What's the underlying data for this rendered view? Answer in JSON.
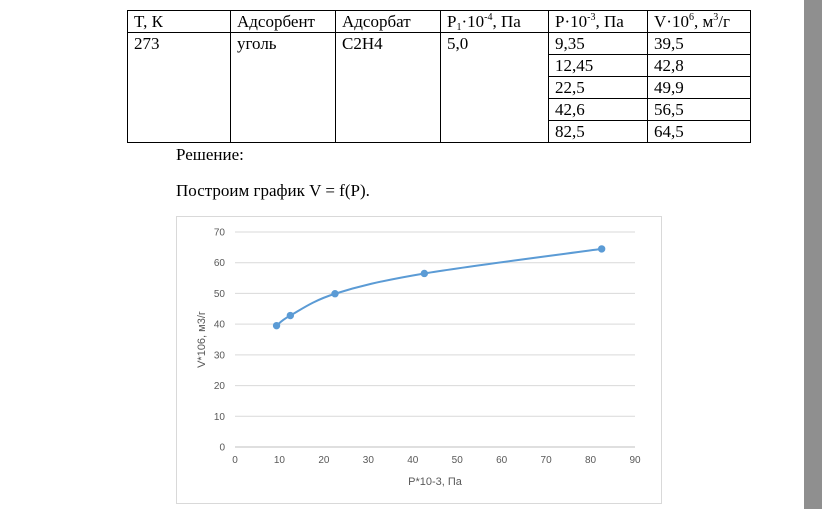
{
  "table": {
    "headers": {
      "t": "T, К",
      "adsorbent": "Адсорбент",
      "adsorbate": "Адсорбат",
      "p1_base": "P",
      "p1_sub": "1",
      "p1_mid": "·10",
      "p1_sup": "-4",
      "p1_unit": ", Па",
      "p_base": "P·10",
      "p_sup": "-3",
      "p_unit": ", Па",
      "v_base": "V·10",
      "v_sup": "6",
      "v_unit": ", м",
      "v_unit_sup": "3",
      "v_unit_end": "/г"
    },
    "row": {
      "t": "273",
      "adsorbent": "уголь",
      "adsorbate": "C2H4",
      "p1": "5,0"
    },
    "p_values": [
      "9,35",
      "12,45",
      "22,5",
      "42,6",
      "82,5"
    ],
    "v_values": [
      "39,5",
      "42,8",
      "49,9",
      "56,5",
      "64,5"
    ]
  },
  "text": {
    "solution": "Решение:",
    "plot_instruction": "Построим график V = f(P)."
  },
  "chart_data": {
    "type": "scatter",
    "xlabel": "P*10-3, Па",
    "ylabel": "V*106, м3/г",
    "xlim": [
      0,
      90
    ],
    "ylim": [
      0,
      70
    ],
    "x_ticks": [
      0,
      10,
      20,
      30,
      40,
      50,
      60,
      70,
      80,
      90
    ],
    "y_ticks": [
      0,
      10,
      20,
      30,
      40,
      50,
      60,
      70
    ],
    "grid": "horizontal",
    "line": "smooth",
    "series": [
      {
        "x": [
          9.35,
          12.45,
          22.5,
          42.6,
          82.5
        ],
        "y": [
          39.5,
          42.8,
          49.9,
          56.5,
          64.5
        ]
      }
    ],
    "color": "#5b9bd5",
    "grid_color": "#d9d9d9"
  }
}
